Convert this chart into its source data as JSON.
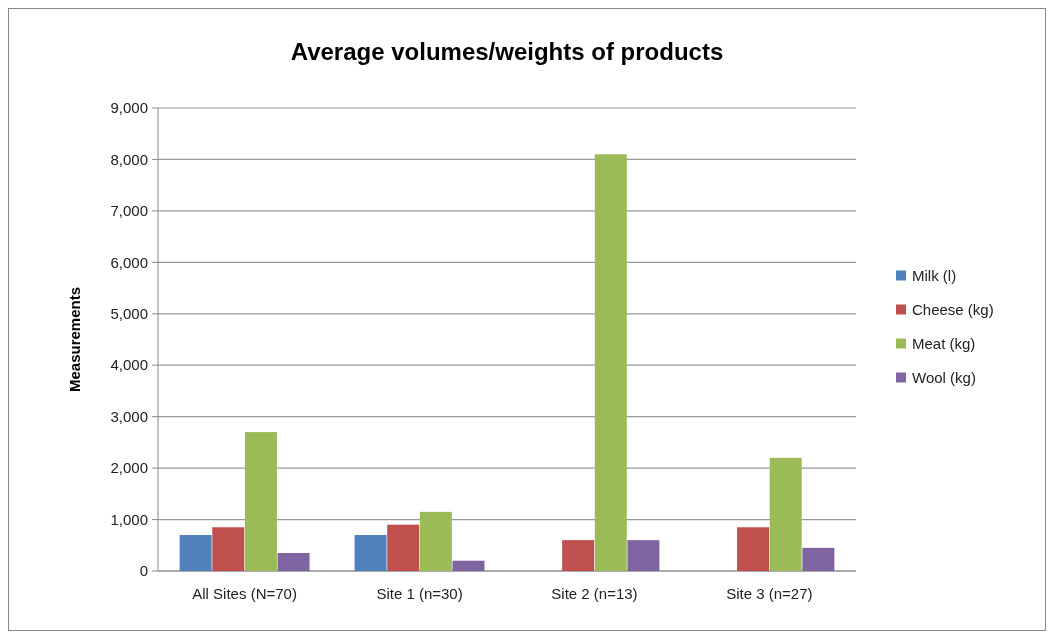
{
  "chart_data": {
    "type": "bar",
    "title": "Average volumes/weights of products",
    "ylabel": "Measurements",
    "categories": [
      "All Sites (N=70)",
      "Site 1 (n=30)",
      "Site 2 (n=13)",
      "Site 3 (n=27)"
    ],
    "series": [
      {
        "name": "Milk (l)",
        "color": "#4f81bd",
        "values": [
          700,
          700,
          0,
          0
        ]
      },
      {
        "name": "Cheese (kg)",
        "color": "#c0504d",
        "values": [
          850,
          900,
          600,
          850
        ]
      },
      {
        "name": "Meat (kg)",
        "color": "#9bbb59",
        "values": [
          2700,
          1150,
          8100,
          2200
        ]
      },
      {
        "name": "Wool (kg)",
        "color": "#8064a2",
        "values": [
          350,
          200,
          600,
          450
        ]
      }
    ],
    "ylim": [
      0,
      9000
    ],
    "yticks": [
      {
        "value": 0,
        "label": "0"
      },
      {
        "value": 1000,
        "label": "1,000"
      },
      {
        "value": 2000,
        "label": "2,000"
      },
      {
        "value": 3000,
        "label": "3,000"
      },
      {
        "value": 4000,
        "label": "4,000"
      },
      {
        "value": 5000,
        "label": "5,000"
      },
      {
        "value": 6000,
        "label": "6,000"
      },
      {
        "value": 7000,
        "label": "7,000"
      },
      {
        "value": 8000,
        "label": "8,000"
      },
      {
        "value": 9000,
        "label": "9,000"
      }
    ],
    "grid": "y",
    "legend": "right"
  }
}
